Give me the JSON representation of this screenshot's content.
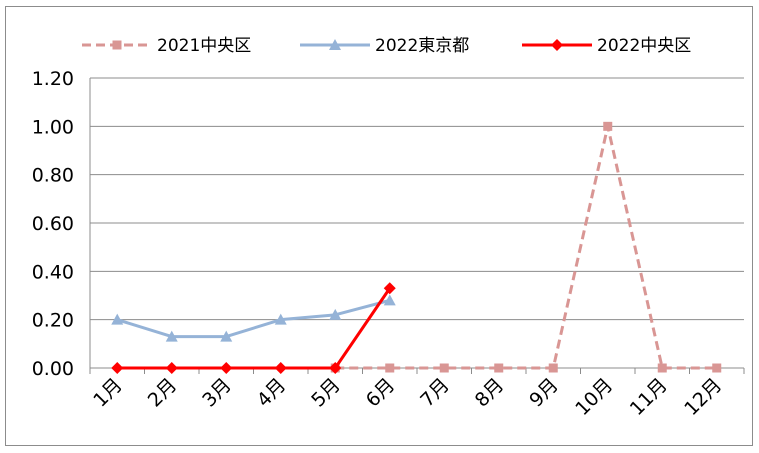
{
  "chart_data": {
    "type": "line",
    "categories": [
      "1月",
      "2月",
      "3月",
      "4月",
      "5月",
      "6月",
      "7月",
      "8月",
      "9月",
      "10月",
      "11月",
      "12月"
    ],
    "ylim": [
      0,
      1.2
    ],
    "yticks": [
      "0.00",
      "0.20",
      "0.40",
      "0.60",
      "0.80",
      "1.00",
      "1.20"
    ],
    "grid": true,
    "legend_position": "top",
    "series": [
      {
        "name": "2021中央区",
        "color": "#d99694",
        "dash": true,
        "marker": "square",
        "values": [
          null,
          null,
          null,
          null,
          0,
          0,
          0,
          0,
          0,
          1.0,
          0,
          0
        ]
      },
      {
        "name": "2022東京都",
        "color": "#95b3d7",
        "dash": false,
        "marker": "triangle",
        "values": [
          0.2,
          0.13,
          0.13,
          0.2,
          0.22,
          0.28,
          null,
          null,
          null,
          null,
          null,
          null
        ]
      },
      {
        "name": "2022中央区",
        "color": "#ff0000",
        "dash": false,
        "marker": "diamond",
        "values": [
          0,
          0,
          0,
          0,
          0,
          0.33,
          null,
          null,
          null,
          null,
          null,
          null
        ]
      }
    ]
  }
}
